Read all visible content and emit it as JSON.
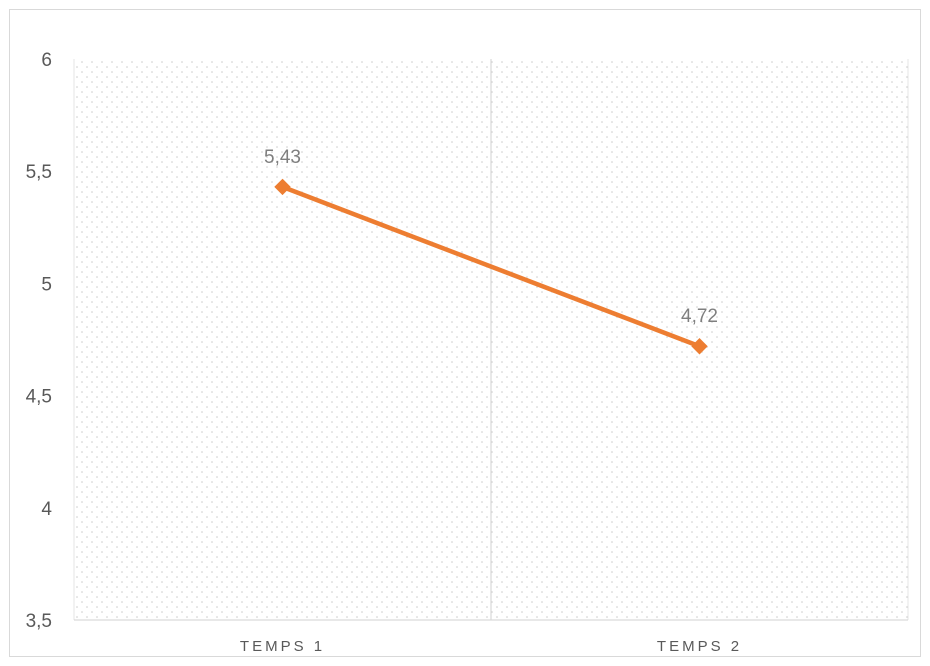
{
  "chart_data": {
    "type": "line",
    "categories": [
      "TEMPS 1",
      "TEMPS 2"
    ],
    "series": [
      {
        "values": [
          5.43,
          4.72
        ],
        "data_labels": [
          "5,43",
          "4,72"
        ],
        "color": "#ed7d31",
        "marker": "diamond"
      }
    ],
    "ylim": [
      3.5,
      6
    ],
    "yticks": [
      3.5,
      4,
      4.5,
      5,
      5.5,
      6
    ],
    "ytick_labels": [
      "3,5",
      "4",
      "4,5",
      "5",
      "5,5",
      "6"
    ],
    "title": "",
    "xlabel": "",
    "ylabel": "",
    "grid": "dotted plot-area pattern",
    "legend": "none",
    "colors": {
      "line": "#ed7d31",
      "axis": "#d9d9d9",
      "text": "#595959",
      "data_label": "#7f7f7f"
    }
  }
}
